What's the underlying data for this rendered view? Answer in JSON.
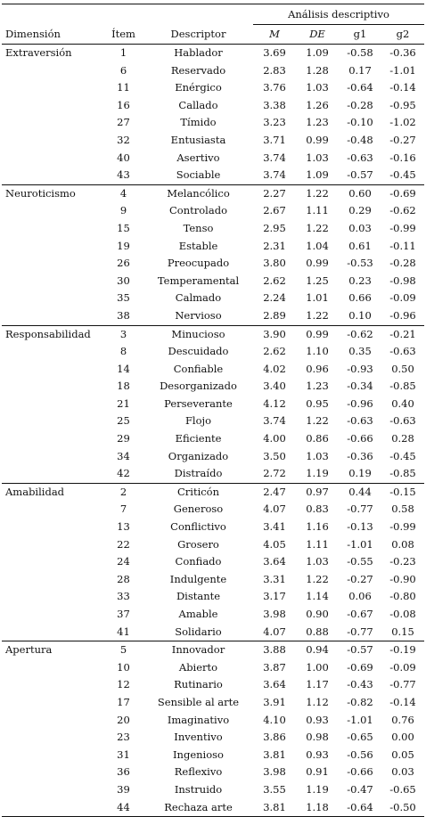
{
  "header": {
    "group_label": "Análisis descriptivo",
    "columns": [
      "Dimensión",
      "Ítem",
      "Descriptor",
      "M",
      "DE",
      "g1",
      "g2"
    ]
  },
  "groups": [
    {
      "dimension": "Extraversión",
      "rows": [
        [
          "1",
          "Hablador",
          "3.69",
          "1.09",
          "-0.58",
          "-0.36"
        ],
        [
          "6",
          "Reservado",
          "2.83",
          "1.28",
          "0.17",
          "-1.01"
        ],
        [
          "11",
          "Enérgico",
          "3.76",
          "1.03",
          "-0.64",
          "-0.14"
        ],
        [
          "16",
          "Callado",
          "3.38",
          "1.26",
          "-0.28",
          "-0.95"
        ],
        [
          "27",
          "Tímido",
          "3.23",
          "1.23",
          "-0.10",
          "-1.02"
        ],
        [
          "32",
          "Entusiasta",
          "3.71",
          "0.99",
          "-0.48",
          "-0.27"
        ],
        [
          "40",
          "Asertivo",
          "3.74",
          "1.03",
          "-0.63",
          "-0.16"
        ],
        [
          "43",
          "Sociable",
          "3.74",
          "1.09",
          "-0.57",
          "-0.45"
        ]
      ]
    },
    {
      "dimension": "Neuroticismo",
      "rows": [
        [
          "4",
          "Melancólico",
          "2.27",
          "1.22",
          "0.60",
          "-0.69"
        ],
        [
          "9",
          "Controlado",
          "2.67",
          "1.11",
          "0.29",
          "-0.62"
        ],
        [
          "15",
          "Tenso",
          "2.95",
          "1.22",
          "0.03",
          "-0.99"
        ],
        [
          "19",
          "Estable",
          "2.31",
          "1.04",
          "0.61",
          "-0.11"
        ],
        [
          "26",
          "Preocupado",
          "3.80",
          "0.99",
          "-0.53",
          "-0.28"
        ],
        [
          "30",
          "Temperamental",
          "2.62",
          "1.25",
          "0.23",
          "-0.98"
        ],
        [
          "35",
          "Calmado",
          "2.24",
          "1.01",
          "0.66",
          "-0.09"
        ],
        [
          "38",
          "Nervioso",
          "2.89",
          "1.22",
          "0.10",
          "-0.96"
        ]
      ]
    },
    {
      "dimension": "Responsabilidad",
      "rows": [
        [
          "3",
          "Minucioso",
          "3.90",
          "0.99",
          "-0.62",
          "-0.21"
        ],
        [
          "8",
          "Descuidado",
          "2.62",
          "1.10",
          "0.35",
          "-0.63"
        ],
        [
          "14",
          "Confiable",
          "4.02",
          "0.96",
          "-0.93",
          "0.50"
        ],
        [
          "18",
          "Desorganizado",
          "3.40",
          "1.23",
          "-0.34",
          "-0.85"
        ],
        [
          "21",
          "Perseverante",
          "4.12",
          "0.95",
          "-0.96",
          "0.40"
        ],
        [
          "25",
          "Flojo",
          "3.74",
          "1.22",
          "-0.63",
          "-0.63"
        ],
        [
          "29",
          "Eficiente",
          "4.00",
          "0.86",
          "-0.66",
          "0.28"
        ],
        [
          "34",
          "Organizado",
          "3.50",
          "1.03",
          "-0.36",
          "-0.45"
        ],
        [
          "42",
          "Distraído",
          "2.72",
          "1.19",
          "0.19",
          "-0.85"
        ]
      ]
    },
    {
      "dimension": "Amabilidad",
      "rows": [
        [
          "2",
          "Criticón",
          "2.47",
          "0.97",
          "0.44",
          "-0.15"
        ],
        [
          "7",
          "Generoso",
          "4.07",
          "0.83",
          "-0.77",
          "0.58"
        ],
        [
          "13",
          "Conflictivo",
          "3.41",
          "1.16",
          "-0.13",
          "-0.99"
        ],
        [
          "22",
          "Grosero",
          "4.05",
          "1.11",
          "-1.01",
          "0.08"
        ],
        [
          "24",
          "Confiado",
          "3.64",
          "1.03",
          "-0.55",
          "-0.23"
        ],
        [
          "28",
          "Indulgente",
          "3.31",
          "1.22",
          "-0.27",
          "-0.90"
        ],
        [
          "33",
          "Distante",
          "3.17",
          "1.14",
          "0.06",
          "-0.80"
        ],
        [
          "37",
          "Amable",
          "3.98",
          "0.90",
          "-0.67",
          "-0.08"
        ],
        [
          "41",
          "Solidario",
          "4.07",
          "0.88",
          "-0.77",
          "0.15"
        ]
      ]
    },
    {
      "dimension": "Apertura",
      "rows": [
        [
          "5",
          "Innovador",
          "3.88",
          "0.94",
          "-0.57",
          "-0.19"
        ],
        [
          "10",
          "Abierto",
          "3.87",
          "1.00",
          "-0.69",
          "-0.09"
        ],
        [
          "12",
          "Rutinario",
          "3.64",
          "1.17",
          "-0.43",
          "-0.77"
        ],
        [
          "17",
          "Sensible al arte",
          "3.91",
          "1.12",
          "-0.82",
          "-0.14"
        ],
        [
          "20",
          "Imaginativo",
          "4.10",
          "0.93",
          "-1.01",
          "0.76"
        ],
        [
          "23",
          "Inventivo",
          "3.86",
          "0.98",
          "-0.65",
          "0.00"
        ],
        [
          "31",
          "Ingenioso",
          "3.81",
          "0.93",
          "-0.56",
          "0.05"
        ],
        [
          "36",
          "Reflexivo",
          "3.98",
          "0.91",
          "-0.66",
          "0.03"
        ],
        [
          "39",
          "Instruido",
          "3.55",
          "1.19",
          "-0.47",
          "-0.65"
        ],
        [
          "44",
          "Rechaza arte",
          "3.81",
          "1.18",
          "-0.64",
          "-0.50"
        ]
      ]
    }
  ]
}
